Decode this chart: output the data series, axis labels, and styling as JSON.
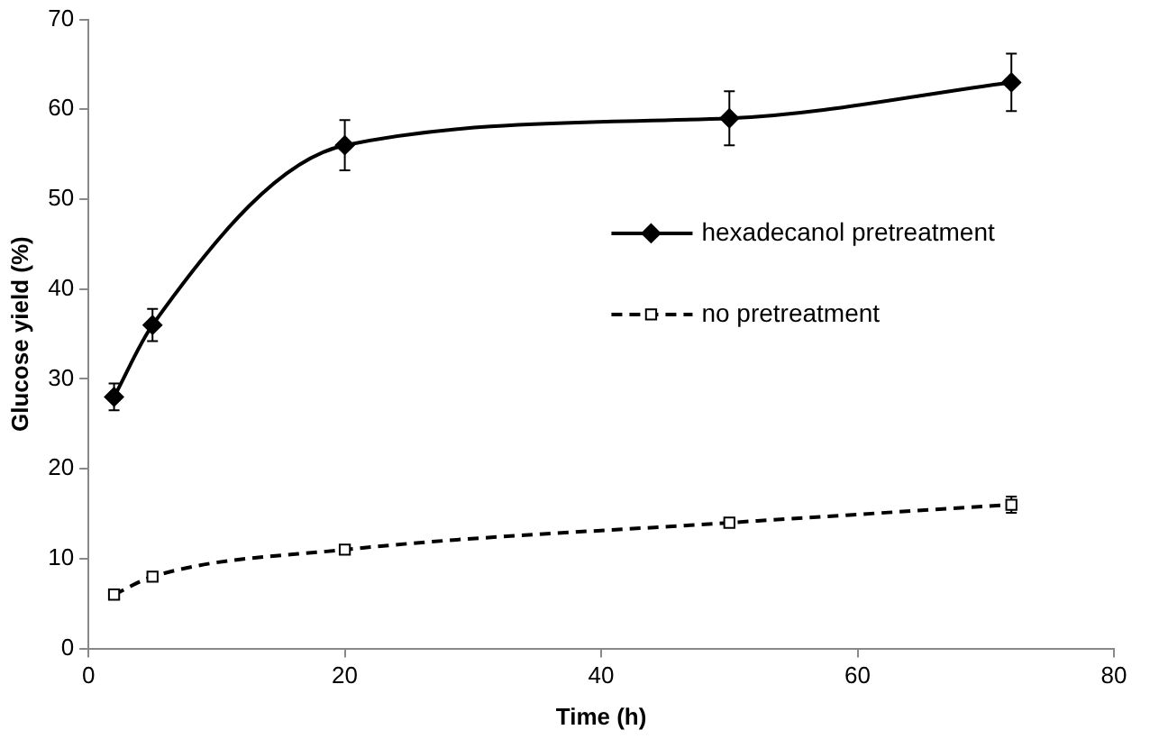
{
  "chart_data": {
    "type": "line",
    "xlabel": "Time (h)",
    "ylabel": "Glucose yield (%)",
    "x": [
      2,
      5,
      20,
      50,
      72
    ],
    "xlim": [
      0,
      80
    ],
    "xticks": [
      0,
      20,
      40,
      60,
      80
    ],
    "ylim": [
      0,
      70
    ],
    "yticks": [
      0,
      10,
      20,
      30,
      40,
      50,
      60,
      70
    ],
    "grid": false,
    "legend": "right",
    "series": [
      {
        "name": "hexadecanol pretreatment",
        "color": "#000000",
        "values": [
          28,
          36,
          56,
          59,
          63
        ],
        "errors": [
          1.5,
          1.8,
          2.8,
          3,
          3.2
        ],
        "marker": "diamond",
        "line_style": "solid"
      },
      {
        "name": "no pretreatment",
        "color": "#000000",
        "values": [
          6,
          8,
          11,
          14,
          16
        ],
        "errors": [
          null,
          null,
          null,
          null,
          0.9
        ],
        "marker": "square",
        "line_style": "dashed"
      }
    ]
  }
}
